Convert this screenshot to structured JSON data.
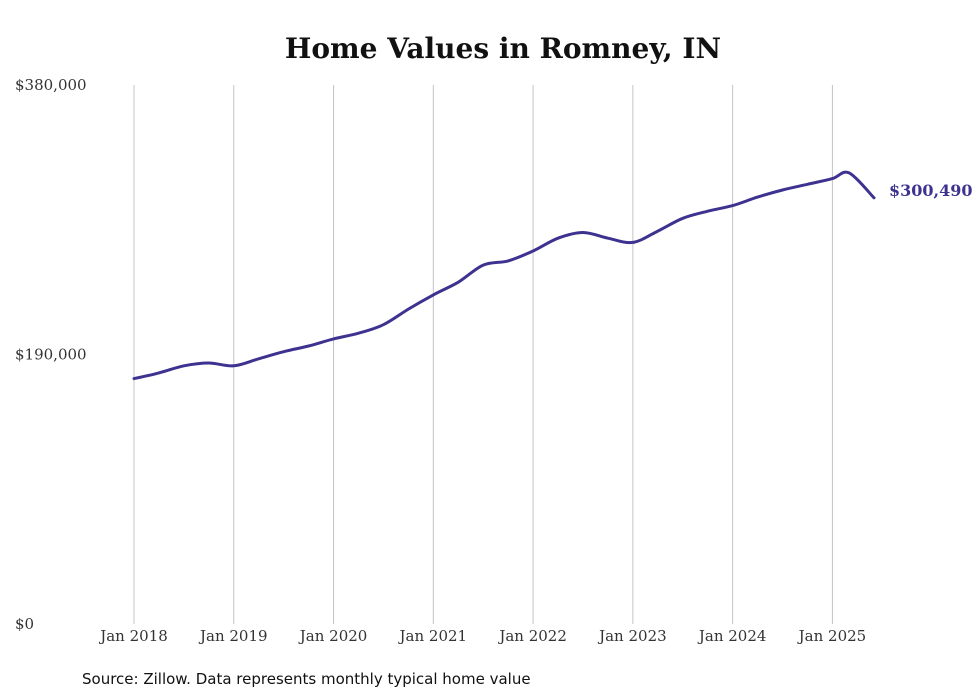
{
  "chart_data": {
    "type": "line",
    "title": "Home Values in Romney, IN",
    "xlabel": "",
    "ylabel": "",
    "ylim": [
      0,
      380000
    ],
    "xlim": [
      "2018-01",
      "2025-06"
    ],
    "y_ticks": [
      "$0",
      "$190,000",
      "$380,000"
    ],
    "y_tick_values": [
      0,
      190000,
      380000
    ],
    "x_ticks": [
      "Jan 2018",
      "Jan 2019",
      "Jan 2020",
      "Jan 2021",
      "Jan 2022",
      "Jan 2023",
      "Jan 2024",
      "Jan 2025"
    ],
    "x_tick_values": [
      "2018-01",
      "2019-01",
      "2020-01",
      "2021-01",
      "2022-01",
      "2023-01",
      "2024-01",
      "2025-01"
    ],
    "grid": "vertical",
    "color": "#3d3290",
    "series": [
      {
        "x": [
          "2018-01",
          "2018-04",
          "2018-07",
          "2018-10",
          "2019-01",
          "2019-04",
          "2019-07",
          "2019-10",
          "2020-01",
          "2020-04",
          "2020-07",
          "2020-10",
          "2021-01",
          "2021-04",
          "2021-07",
          "2021-10",
          "2022-01",
          "2022-04",
          "2022-07",
          "2022-10",
          "2023-01",
          "2023-04",
          "2023-07",
          "2023-10",
          "2024-01",
          "2024-04",
          "2024-07",
          "2024-10",
          "2025-01",
          "2025-03",
          "2025-06"
        ],
        "values": [
          173000,
          177000,
          182000,
          184000,
          182000,
          187000,
          192000,
          196000,
          201000,
          205000,
          211000,
          222000,
          232000,
          241000,
          253000,
          256000,
          263000,
          272000,
          276000,
          272000,
          269000,
          277000,
          286000,
          291000,
          295000,
          301000,
          306000,
          310000,
          314000,
          318000,
          300490
        ]
      }
    ],
    "end_label": "$300,490"
  },
  "source": "Source: Zillow. Data represents monthly typical home value"
}
